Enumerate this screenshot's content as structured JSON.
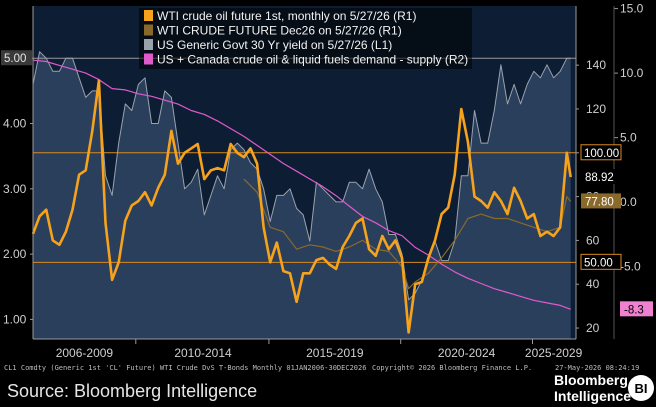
{
  "chart_data": {
    "type": "line",
    "x_axis": {
      "labels": [
        "2006-2009",
        "2010-2014",
        "2015-2019",
        "2020-2024",
        "2025-2029"
      ]
    },
    "y_left": {
      "ticks": [
        "1.00",
        "2.00",
        "3.00",
        "4.00",
        "5.00"
      ],
      "range": [
        0.7,
        5.8
      ]
    },
    "y_right1": {
      "ticks": [
        "20",
        "40",
        "60",
        "80",
        "100",
        "120",
        "140"
      ],
      "range": [
        15,
        167
      ]
    },
    "y_right2": {
      "ticks": [
        "-5.0",
        "0.0",
        "5.0",
        "10.0",
        "15.0"
      ],
      "range": [
        -10.6,
        15.2
      ]
    },
    "reference_lines": [
      {
        "axis": "R1",
        "value": 100.0,
        "label": "100.00"
      },
      {
        "axis": "R1",
        "value": 50.0,
        "label": "50.00"
      },
      {
        "axis": "L1",
        "value": 5.0,
        "label": "5.00"
      }
    ],
    "last_value_tags": [
      {
        "axis": "R1",
        "value": 88.92,
        "label": "88.92",
        "color": "#ffffff",
        "bg": "#000000"
      },
      {
        "axis": "R1",
        "value": 77.8,
        "label": "77.80",
        "color": "#ffffff",
        "bg": "#8a6a2a"
      },
      {
        "axis": "R2",
        "value": -8.3,
        "label": "-8.3",
        "color": "#000000",
        "bg": "#f080d0"
      }
    ],
    "legend": [
      {
        "label": "WTI crude oil future 1st, monthly  on 5/27/26 (R1)",
        "color": "#f7a21c"
      },
      {
        "label": "WTI CRUDE FUTURE Dec26 on 5/27/26 (R1)",
        "color": "#8a6a2a"
      },
      {
        "label": "US Generic Govt 30 Yr yield on 5/27/26 (L1)",
        "color": "#9aa3ad"
      },
      {
        "label": "US + Canada crude oil & liquid fuels demand - supply (R2)",
        "color": "#e05acc"
      }
    ],
    "series": [
      {
        "name": "US Generic Govt 30 Yr yield on 5/27/26 (L1)",
        "axis": "L1",
        "x": [
          2006.0,
          2006.25,
          2006.5,
          2006.75,
          2007.0,
          2007.25,
          2007.5,
          2007.75,
          2008.0,
          2008.25,
          2008.5,
          2008.75,
          2009.0,
          2009.25,
          2009.5,
          2009.75,
          2010.0,
          2010.25,
          2010.5,
          2010.75,
          2011.0,
          2011.25,
          2011.5,
          2011.75,
          2012.0,
          2012.25,
          2012.5,
          2012.75,
          2013.0,
          2013.25,
          2013.5,
          2013.75,
          2014.0,
          2014.25,
          2014.5,
          2014.75,
          2015.0,
          2015.25,
          2015.5,
          2015.75,
          2016.0,
          2016.25,
          2016.5,
          2016.75,
          2017.0,
          2017.25,
          2017.5,
          2017.75,
          2018.0,
          2018.25,
          2018.5,
          2018.75,
          2019.0,
          2019.25,
          2019.5,
          2019.75,
          2020.0,
          2020.25,
          2020.5,
          2020.75,
          2021.0,
          2021.25,
          2021.5,
          2021.75,
          2022.0,
          2022.25,
          2022.5,
          2022.75,
          2023.0,
          2023.25,
          2023.5,
          2023.75,
          2024.0,
          2024.25,
          2024.5,
          2024.75,
          2025.0,
          2025.25,
          2025.5,
          2025.75,
          2026.0,
          2026.25,
          2026.4
        ],
        "values": [
          4.6,
          5.1,
          5.0,
          4.8,
          4.8,
          5.0,
          5.0,
          4.7,
          4.4,
          4.5,
          4.5,
          3.2,
          2.9,
          3.7,
          4.3,
          4.2,
          4.6,
          4.7,
          4.0,
          4.0,
          4.5,
          4.4,
          3.7,
          3.0,
          3.1,
          3.3,
          2.6,
          2.9,
          3.2,
          3.0,
          3.6,
          3.7,
          3.6,
          3.4,
          3.3,
          3.0,
          2.5,
          2.9,
          2.9,
          3.0,
          2.7,
          2.6,
          2.2,
          3.1,
          3.0,
          2.9,
          2.8,
          2.8,
          3.1,
          3.1,
          3.0,
          3.3,
          3.0,
          2.8,
          2.3,
          2.3,
          2.0,
          1.3,
          1.4,
          1.6,
          1.9,
          2.2,
          1.9,
          1.9,
          2.2,
          3.2,
          3.2,
          4.2,
          3.7,
          3.7,
          4.2,
          4.9,
          4.3,
          4.6,
          4.3,
          4.6,
          4.8,
          4.7,
          4.9,
          4.7,
          4.8,
          5.0,
          5.0
        ]
      },
      {
        "name": "WTI crude oil future 1st, monthly  on 5/27/26 (R1)",
        "axis": "R1",
        "x": [
          2006.0,
          2006.25,
          2006.5,
          2006.75,
          2007.0,
          2007.25,
          2007.5,
          2007.75,
          2008.0,
          2008.25,
          2008.5,
          2008.75,
          2009.0,
          2009.25,
          2009.5,
          2009.75,
          2010.0,
          2010.25,
          2010.5,
          2010.75,
          2011.0,
          2011.25,
          2011.5,
          2011.75,
          2012.0,
          2012.25,
          2012.5,
          2012.75,
          2013.0,
          2013.25,
          2013.5,
          2013.75,
          2014.0,
          2014.25,
          2014.5,
          2014.75,
          2015.0,
          2015.25,
          2015.5,
          2015.75,
          2016.0,
          2016.25,
          2016.5,
          2016.75,
          2017.0,
          2017.25,
          2017.5,
          2017.75,
          2018.0,
          2018.25,
          2018.5,
          2018.75,
          2019.0,
          2019.25,
          2019.5,
          2019.75,
          2020.0,
          2020.25,
          2020.5,
          2020.75,
          2021.0,
          2021.25,
          2021.5,
          2021.75,
          2022.0,
          2022.25,
          2022.5,
          2022.75,
          2023.0,
          2023.25,
          2023.5,
          2023.75,
          2024.0,
          2024.25,
          2024.5,
          2024.75,
          2025.0,
          2025.25,
          2025.5,
          2025.75,
          2026.0,
          2026.25,
          2026.4
        ],
        "values": [
          63,
          71,
          74,
          60,
          58,
          64,
          74,
          90,
          92,
          110,
          133,
          68,
          42,
          50,
          69,
          76,
          78,
          82,
          76,
          84,
          90,
          110,
          95,
          100,
          102,
          104,
          88,
          92,
          93,
          92,
          104,
          100,
          98,
          102,
          95,
          66,
          50,
          59,
          46,
          45,
          32,
          45,
          45,
          51,
          52,
          49,
          47,
          57,
          62,
          68,
          70,
          56,
          53,
          62,
          56,
          60,
          52,
          18,
          40,
          41,
          52,
          60,
          72,
          75,
          90,
          120,
          105,
          80,
          78,
          75,
          82,
          78,
          72,
          84,
          78,
          70,
          72,
          62,
          64,
          62,
          66,
          100,
          88.92
        ]
      },
      {
        "name": "WTI CRUDE FUTURE Dec26 on 5/27/26 (R1)",
        "axis": "R1",
        "x": [
          2014.0,
          2014.5,
          2015.0,
          2015.5,
          2016.0,
          2016.5,
          2017.0,
          2017.5,
          2018.0,
          2018.5,
          2019.0,
          2019.5,
          2020.0,
          2020.25,
          2020.5,
          2021.0,
          2021.5,
          2022.0,
          2022.5,
          2023.0,
          2023.5,
          2024.0,
          2024.5,
          2025.0,
          2025.5,
          2026.0,
          2026.25,
          2026.4
        ],
        "values": [
          88,
          82,
          66,
          64,
          56,
          58,
          57,
          55,
          57,
          60,
          56,
          55,
          48,
          38,
          41,
          45,
          52,
          60,
          70,
          72,
          70,
          70,
          68,
          66,
          64,
          66,
          80,
          77.8
        ]
      },
      {
        "name": "US + Canada crude oil & liquid fuels demand - supply (R2)",
        "axis": "R2",
        "x": [
          2006.0,
          2006.5,
          2007.0,
          2007.5,
          2008.0,
          2008.5,
          2009.0,
          2009.5,
          2010.0,
          2010.5,
          2011.0,
          2011.5,
          2012.0,
          2012.5,
          2013.0,
          2013.5,
          2014.0,
          2014.5,
          2015.0,
          2015.5,
          2016.0,
          2016.5,
          2017.0,
          2017.5,
          2018.0,
          2018.5,
          2019.0,
          2019.5,
          2020.0,
          2020.5,
          2021.0,
          2021.5,
          2022.0,
          2022.5,
          2023.0,
          2023.5,
          2024.0,
          2024.5,
          2025.0,
          2025.5,
          2026.0,
          2026.4
        ],
        "values": [
          11.0,
          10.9,
          10.6,
          10.3,
          10.0,
          9.5,
          8.8,
          8.7,
          8.4,
          8.2,
          7.9,
          7.6,
          7.1,
          6.8,
          6.3,
          5.7,
          5.1,
          4.4,
          3.7,
          3.0,
          2.4,
          1.8,
          1.2,
          0.5,
          -0.3,
          -1.1,
          -1.6,
          -2.2,
          -2.6,
          -3.5,
          -4.1,
          -4.8,
          -5.4,
          -5.9,
          -6.3,
          -6.7,
          -7.0,
          -7.3,
          -7.6,
          -7.8,
          -8.0,
          -8.3
        ]
      }
    ]
  },
  "footer": {
    "meta_left": "CL1 Comdty (Generic 1st 'CL' Future) WTI Crude DvS T-Bonds Monthly 01JAN2006-30DEC2026",
    "copyright": "Copyright© 2026 Bloomberg Finance L.P.",
    "timestamp": "27-May-2026 08:24:19",
    "source": "Source: Bloomberg Intelligence",
    "brand_line1": "Bloomberg",
    "brand_line2": "Intelligence",
    "brand_badge": "BI"
  },
  "colors": {
    "background": "#000000",
    "plot_fill": "#0d1d33",
    "yield_fill": "#2a3f5c",
    "yield_line": "#9aa3ad",
    "wti_front": "#f7a21c",
    "wti_dec26": "#8a6a2a",
    "demand_supply": "#e05acc",
    "reference_line": "#d98b1c",
    "axis": "#9a9a9a"
  }
}
